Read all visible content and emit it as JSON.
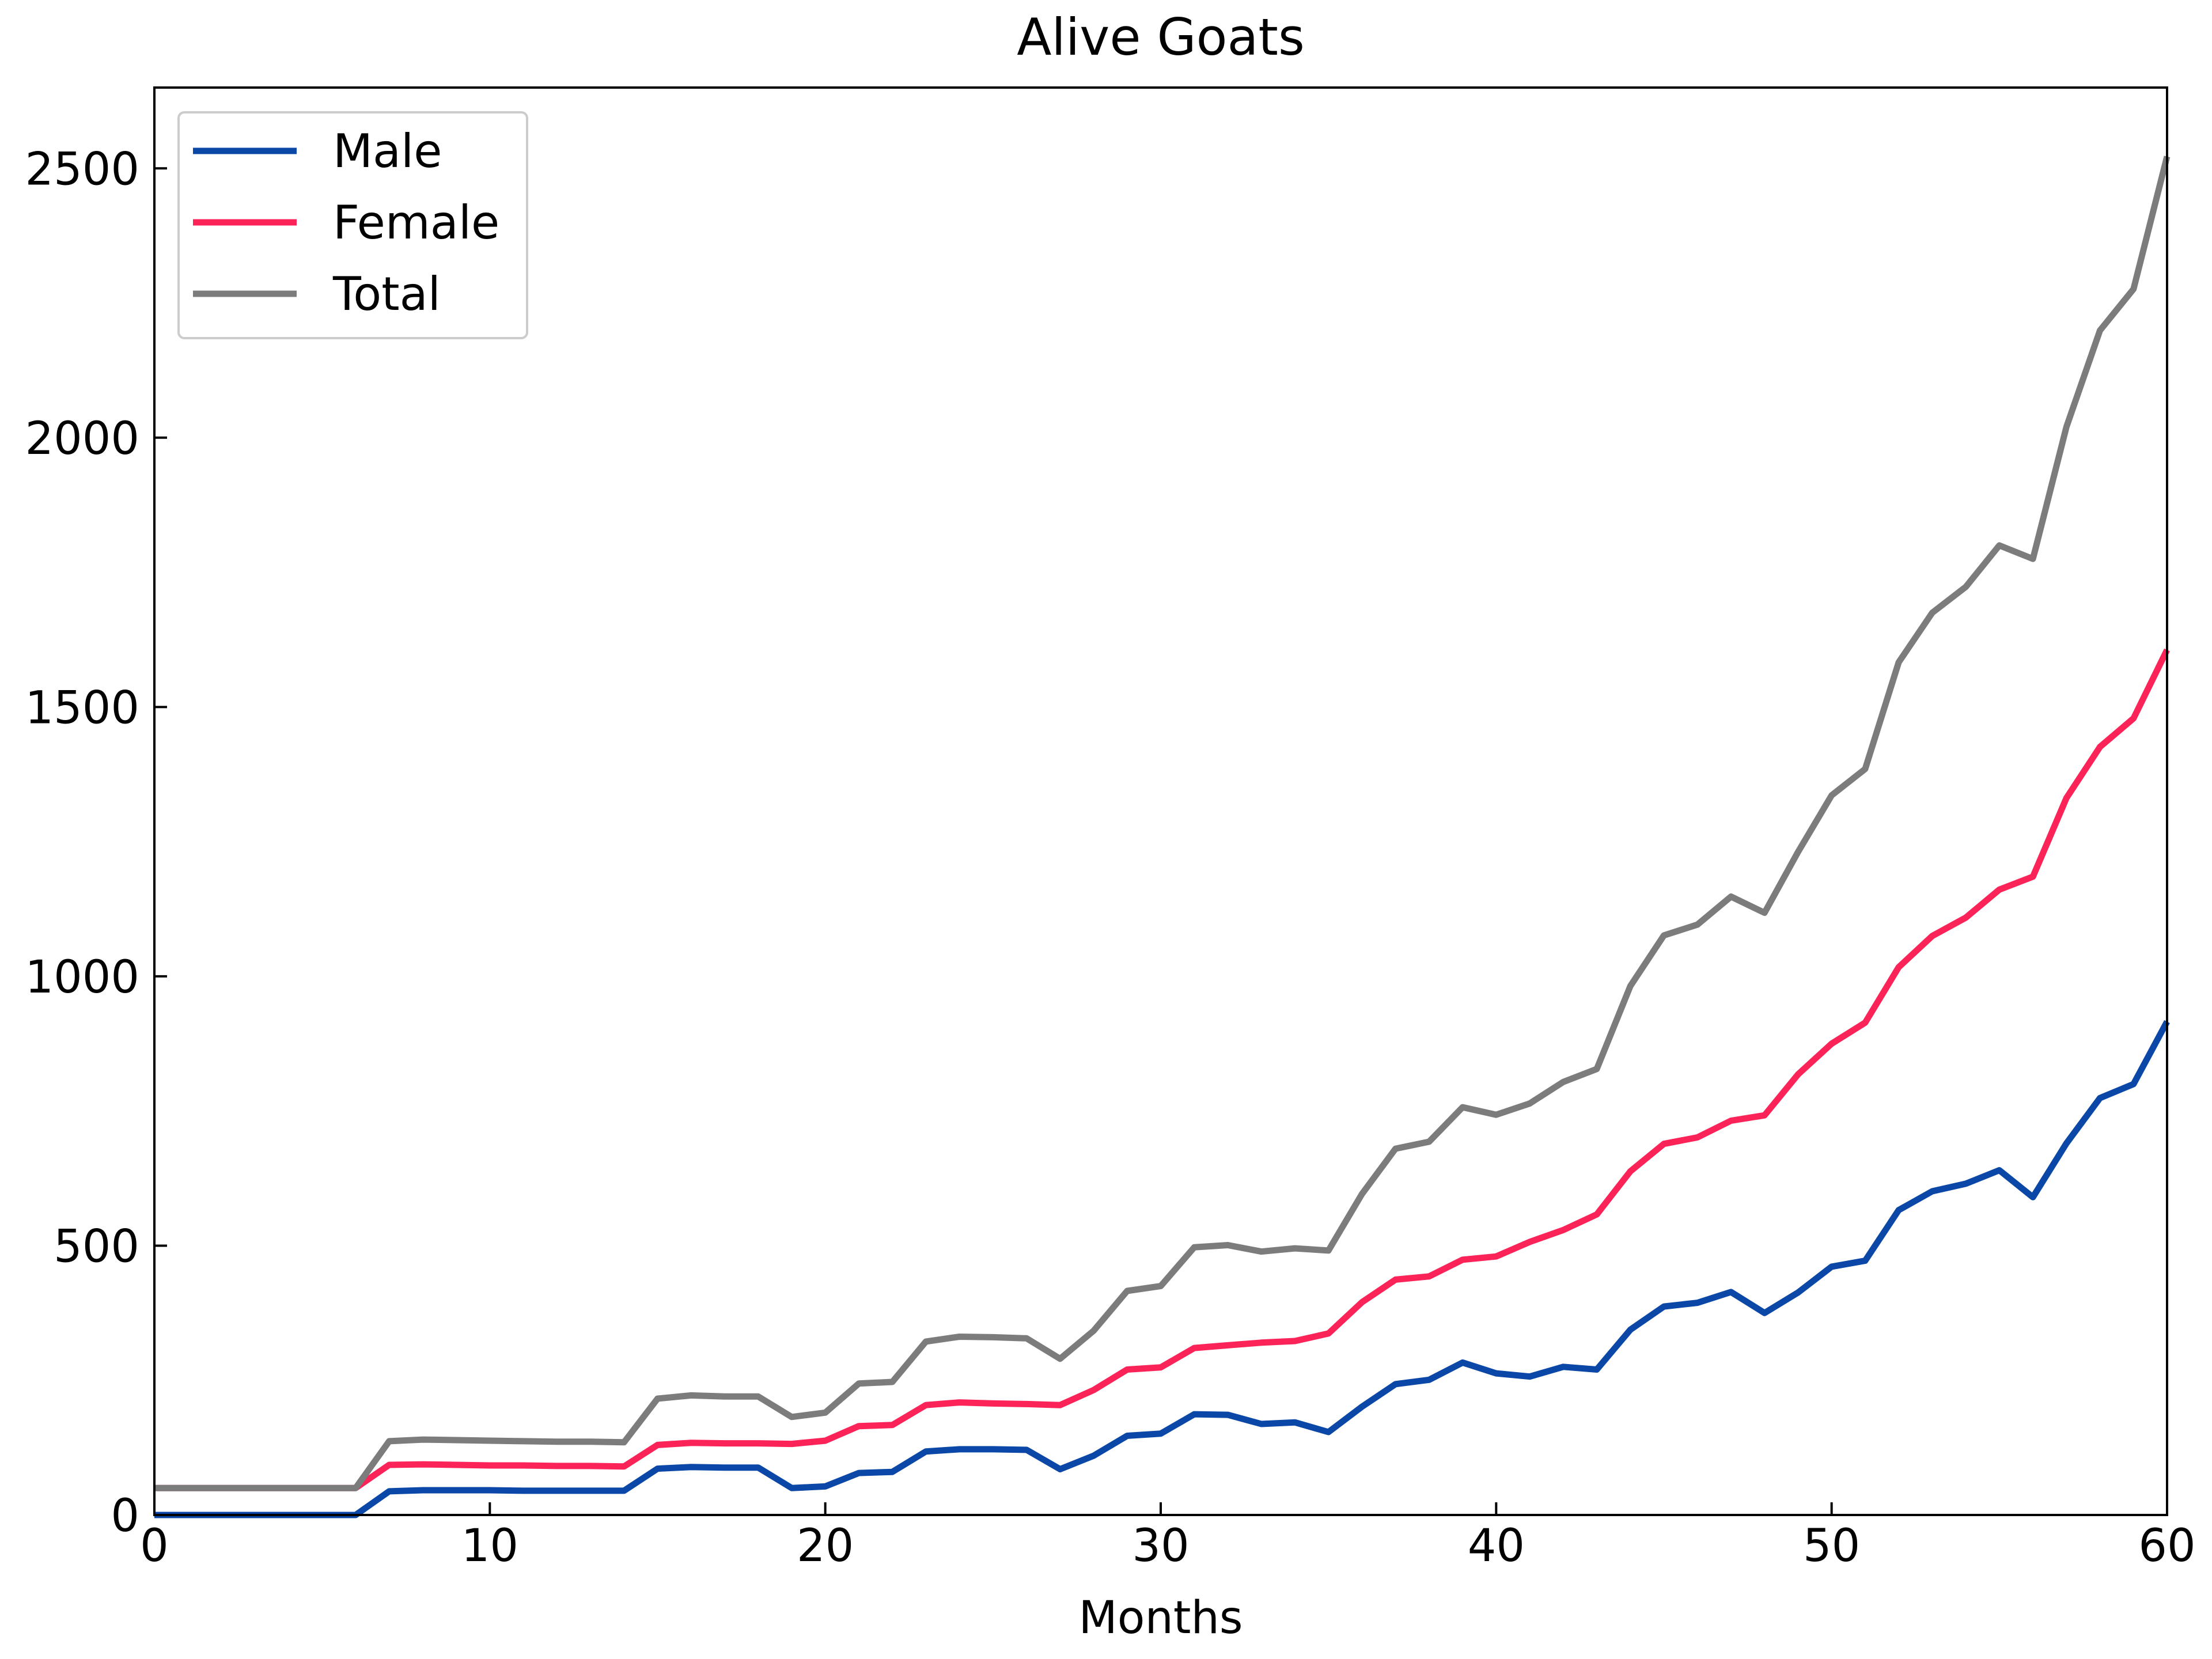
{
  "chart_data": {
    "type": "line",
    "title": "Alive Goats",
    "xlabel": "Months",
    "ylabel": "",
    "xlim": [
      0,
      60
    ],
    "ylim": [
      0,
      2650
    ],
    "xticks": [
      0,
      10,
      20,
      30,
      40,
      50,
      60
    ],
    "yticks": [
      0,
      500,
      1000,
      1500,
      2000,
      2500
    ],
    "grid": false,
    "legend_position": "top-left",
    "x": [
      0,
      1,
      2,
      3,
      4,
      5,
      6,
      7,
      8,
      9,
      10,
      11,
      12,
      13,
      14,
      15,
      16,
      17,
      18,
      19,
      20,
      21,
      22,
      23,
      24,
      25,
      26,
      27,
      28,
      29,
      30,
      31,
      32,
      33,
      34,
      35,
      36,
      37,
      38,
      39,
      40,
      41,
      42,
      43,
      44,
      45,
      46,
      47,
      48,
      49,
      50,
      51,
      52,
      53,
      54,
      55,
      56,
      57,
      58,
      59,
      60
    ],
    "series": [
      {
        "name": "Male",
        "color": "#0a47a6",
        "values": [
          0,
          0,
          0,
          0,
          0,
          0,
          0,
          44,
          46,
          46,
          46,
          45,
          45,
          45,
          45,
          86,
          89,
          88,
          88,
          50,
          53,
          78,
          80,
          118,
          122,
          122,
          121,
          85,
          110,
          147,
          151,
          187,
          186,
          169,
          172,
          154,
          201,
          243,
          251,
          283,
          263,
          257,
          275,
          270,
          344,
          387,
          394,
          414,
          375,
          413,
          461,
          472,
          566,
          601,
          615,
          640,
          590,
          690,
          774,
          800,
          916
        ]
      },
      {
        "name": "Female",
        "color": "#fb2357",
        "values": [
          50,
          50,
          50,
          50,
          50,
          50,
          50,
          93,
          94,
          93,
          92,
          92,
          91,
          91,
          90,
          130,
          134,
          133,
          133,
          132,
          138,
          165,
          167,
          204,
          209,
          207,
          206,
          204,
          232,
          270,
          274,
          310,
          315,
          320,
          323,
          337,
          395,
          437,
          443,
          474,
          480,
          507,
          529,
          558,
          638,
          689,
          701,
          732,
          742,
          818,
          875,
          914,
          1017,
          1075,
          1109,
          1161,
          1185,
          1331,
          1426,
          1479,
          1606
        ]
      },
      {
        "name": "Total",
        "color": "#7c7c7c",
        "values": [
          50,
          50,
          50,
          50,
          50,
          50,
          50,
          137,
          140,
          139,
          138,
          137,
          136,
          136,
          135,
          216,
          222,
          220,
          220,
          182,
          190,
          244,
          247,
          322,
          331,
          330,
          328,
          290,
          342,
          416,
          425,
          497,
          501,
          489,
          495,
          491,
          596,
          680,
          693,
          757,
          743,
          764,
          804,
          828,
          982,
          1076,
          1096,
          1148,
          1118,
          1231,
          1336,
          1385,
          1583,
          1675,
          1723,
          1800,
          1775,
          2020,
          2199,
          2276,
          2522
        ]
      }
    ]
  }
}
